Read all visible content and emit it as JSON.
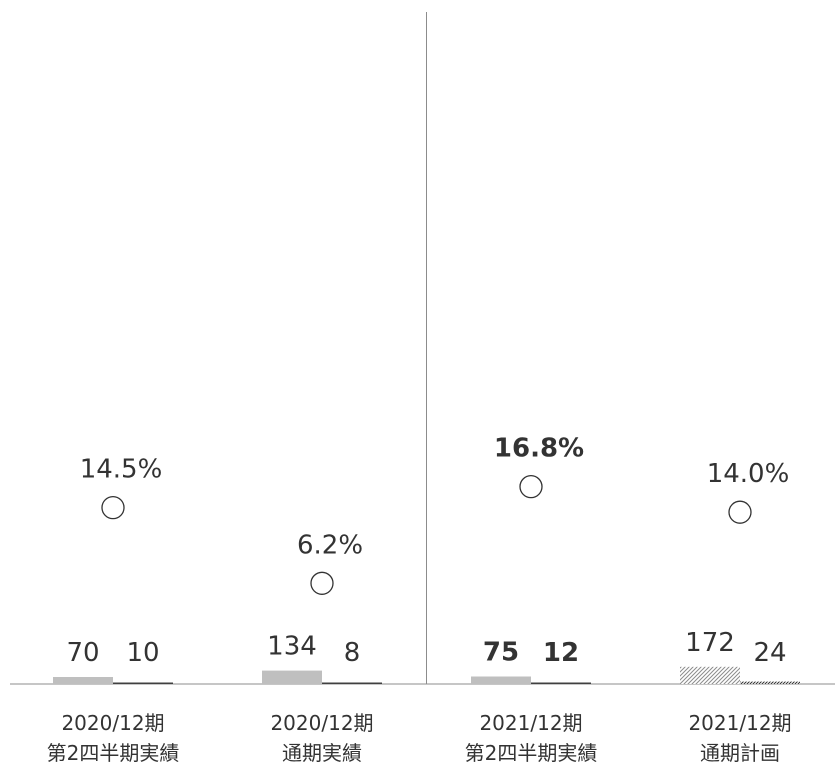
{
  "chart_data": {
    "type": "bar",
    "categories": [
      [
        "2020/12期",
        "第2四半期実績"
      ],
      [
        "2020/12期",
        "通期実績"
      ],
      [
        "2021/12期",
        "第2四半期実績"
      ],
      [
        "2021/12期",
        "通期計画"
      ]
    ],
    "series": [
      {
        "kind": "bar",
        "values": [
          70,
          134,
          75,
          172
        ],
        "labels": [
          "70",
          "134",
          "75",
          "172"
        ],
        "colors": [
          "#bfbfbf",
          "#bfbfbf",
          "#bfbfbf",
          "#bfbfbf"
        ],
        "patterned": [
          false,
          false,
          false,
          true
        ],
        "bold": [
          false,
          false,
          true,
          false
        ]
      },
      {
        "kind": "bar",
        "values": [
          10,
          8,
          12,
          24
        ],
        "labels": [
          "10",
          "8",
          "12",
          "24"
        ],
        "colors": [
          "#404040",
          "#404040",
          "#404040",
          "#404040"
        ],
        "patterned": [
          false,
          false,
          false,
          true
        ],
        "bold": [
          false,
          false,
          true,
          false
        ]
      },
      {
        "kind": "marker",
        "marker": "circle",
        "values": [
          14.5,
          6.2,
          16.8,
          14.0
        ],
        "labels": [
          "14.5%",
          "6.2%",
          "16.8%",
          "14.0%"
        ],
        "bold": [
          false,
          false,
          true,
          false
        ]
      }
    ],
    "divider_after_category": 1,
    "grid": false,
    "legend": "none"
  }
}
